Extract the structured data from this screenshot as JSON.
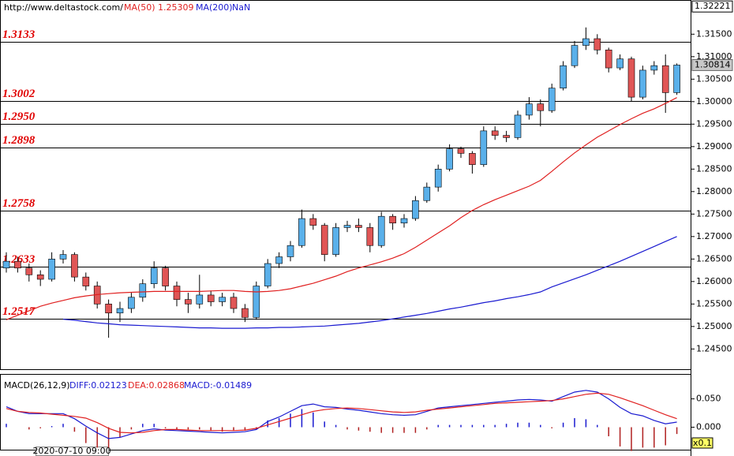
{
  "chart_data": [
    {
      "type": "candlestick",
      "source": "http://www.deltastock.com/",
      "up_color": "#5ab0ea",
      "down_color": "#e05656",
      "ylim": [
        1.2405,
        1.3226
      ],
      "yticks": [
        {
          "value": 1.245,
          "label": "1.24500"
        },
        {
          "value": 1.25,
          "label": "1.25000"
        },
        {
          "value": 1.255,
          "label": "1.25500"
        },
        {
          "value": 1.26,
          "label": "1.26000"
        },
        {
          "value": 1.265,
          "label": "1.26500"
        },
        {
          "value": 1.27,
          "label": "1.27000"
        },
        {
          "value": 1.275,
          "label": "1.27500"
        },
        {
          "value": 1.28,
          "label": "1.28000"
        },
        {
          "value": 1.285,
          "label": "1.28500"
        },
        {
          "value": 1.29,
          "label": "1.29000"
        },
        {
          "value": 1.295,
          "label": "1.29500"
        },
        {
          "value": 1.3,
          "label": "1.30000"
        },
        {
          "value": 1.305,
          "label": "1.30500"
        },
        {
          "value": 1.31,
          "label": "1.31000"
        },
        {
          "value": 1.315,
          "label": "1.31500"
        }
      ],
      "top_price": 1.32221,
      "current_price": 1.30814,
      "levels": [
        1.3133,
        1.3002,
        {
          "value": 1.295,
          "label": "1.2950"
        },
        1.2898,
        1.2758,
        1.2633,
        1.2517
      ],
      "ohlc": [
        [
          1.263,
          1.2665,
          1.262,
          1.2645
        ],
        [
          1.2645,
          1.2655,
          1.262,
          1.263
        ],
        [
          1.263,
          1.264,
          1.26,
          1.2615
        ],
        [
          1.2615,
          1.2625,
          1.259,
          1.2605
        ],
        [
          1.2605,
          1.2665,
          1.26,
          1.265
        ],
        [
          1.265,
          1.267,
          1.264,
          1.266
        ],
        [
          1.266,
          1.2665,
          1.26,
          1.261
        ],
        [
          1.261,
          1.262,
          1.258,
          1.259
        ],
        [
          1.259,
          1.26,
          1.254,
          1.255
        ],
        [
          1.255,
          1.256,
          1.2475,
          1.253
        ],
        [
          1.253,
          1.2555,
          1.251,
          1.254
        ],
        [
          1.254,
          1.2575,
          1.253,
          1.2565
        ],
        [
          1.2565,
          1.2605,
          1.2555,
          1.2595
        ],
        [
          1.2595,
          1.2645,
          1.2585,
          1.263
        ],
        [
          1.263,
          1.2635,
          1.258,
          1.259
        ],
        [
          1.259,
          1.26,
          1.2545,
          1.256
        ],
        [
          1.256,
          1.2575,
          1.253,
          1.255
        ],
        [
          1.255,
          1.2615,
          1.254,
          1.257
        ],
        [
          1.257,
          1.258,
          1.2545,
          1.2555
        ],
        [
          1.2555,
          1.2575,
          1.2545,
          1.2565
        ],
        [
          1.2565,
          1.2575,
          1.253,
          1.254
        ],
        [
          1.254,
          1.255,
          1.251,
          1.252
        ],
        [
          1.252,
          1.26,
          1.2515,
          1.259
        ],
        [
          1.259,
          1.265,
          1.2585,
          1.264
        ],
        [
          1.264,
          1.2665,
          1.263,
          1.2655
        ],
        [
          1.2655,
          1.269,
          1.2645,
          1.268
        ],
        [
          1.268,
          1.276,
          1.2675,
          1.274
        ],
        [
          1.274,
          1.275,
          1.2715,
          1.2725
        ],
        [
          1.2725,
          1.273,
          1.2645,
          1.266
        ],
        [
          1.266,
          1.273,
          1.2655,
          1.272
        ],
        [
          1.272,
          1.2735,
          1.271,
          1.2725
        ],
        [
          1.2725,
          1.274,
          1.271,
          1.272
        ],
        [
          1.272,
          1.273,
          1.2665,
          1.268
        ],
        [
          1.268,
          1.2755,
          1.2675,
          1.2745
        ],
        [
          1.2745,
          1.275,
          1.2715,
          1.273
        ],
        [
          1.273,
          1.275,
          1.272,
          1.274
        ],
        [
          1.274,
          1.279,
          1.2735,
          1.278
        ],
        [
          1.278,
          1.282,
          1.2775,
          1.281
        ],
        [
          1.281,
          1.286,
          1.28,
          1.285
        ],
        [
          1.285,
          1.2905,
          1.2845,
          1.2895
        ],
        [
          1.2895,
          1.29,
          1.2875,
          1.2885
        ],
        [
          1.2885,
          1.289,
          1.284,
          1.286
        ],
        [
          1.286,
          1.2945,
          1.2855,
          1.2935
        ],
        [
          1.2935,
          1.2945,
          1.2915,
          1.2925
        ],
        [
          1.2925,
          1.2935,
          1.291,
          1.292
        ],
        [
          1.292,
          1.298,
          1.2915,
          1.297
        ],
        [
          1.297,
          1.301,
          1.296,
          1.2995
        ],
        [
          1.2995,
          1.3005,
          1.2945,
          1.298
        ],
        [
          1.298,
          1.304,
          1.2975,
          1.303
        ],
        [
          1.303,
          1.309,
          1.3025,
          1.308
        ],
        [
          1.308,
          1.3135,
          1.3075,
          1.3125
        ],
        [
          1.3125,
          1.3165,
          1.3115,
          1.314
        ],
        [
          1.314,
          1.315,
          1.3105,
          1.3115
        ],
        [
          1.3115,
          1.312,
          1.3065,
          1.3075
        ],
        [
          1.3075,
          1.3105,
          1.307,
          1.3095
        ],
        [
          1.3095,
          1.31,
          1.3,
          1.301
        ],
        [
          1.301,
          1.308,
          1.3005,
          1.307
        ],
        [
          1.307,
          1.309,
          1.306,
          1.308
        ],
        [
          1.308,
          1.3105,
          1.2975,
          1.302
        ],
        [
          1.302,
          1.3085,
          1.3015,
          1.30814
        ]
      ],
      "series": [
        {
          "name": "MA(50)",
          "readout": "1.25309",
          "color": "#e02020",
          "values": [
            1.2515,
            1.2525,
            1.2535,
            1.2545,
            1.2552,
            1.2558,
            1.2564,
            1.2568,
            1.2571,
            1.2573,
            1.2575,
            1.2576,
            1.2577,
            1.2578,
            1.2578,
            1.2578,
            1.2578,
            1.2578,
            1.2579,
            1.258,
            1.258,
            1.2578,
            1.2577,
            1.2578,
            1.258,
            1.2584,
            1.259,
            1.2596,
            1.2604,
            1.2612,
            1.2622,
            1.263,
            1.2637,
            1.2644,
            1.2652,
            1.2662,
            1.2676,
            1.2692,
            1.2708,
            1.2724,
            1.2742,
            1.2758,
            1.2771,
            1.2782,
            1.2792,
            1.2802,
            1.2812,
            1.2825,
            1.2845,
            1.2866,
            1.2886,
            1.2904,
            1.2921,
            1.2935,
            1.2949,
            1.2962,
            1.2974,
            1.2984,
            1.2996,
            1.3009
          ]
        },
        {
          "name": "MA(200)",
          "readout": "NaN",
          "color": "#1a1ad0",
          "values": [
            null,
            null,
            null,
            null,
            null,
            1.2516,
            1.2514,
            1.2511,
            1.2508,
            1.2506,
            1.2504,
            1.2503,
            1.2502,
            1.2501,
            1.25,
            1.2499,
            1.2498,
            1.2497,
            1.2497,
            1.2496,
            1.2496,
            1.2496,
            1.2497,
            1.2497,
            1.2498,
            1.2498,
            1.2499,
            1.25,
            1.2501,
            1.2503,
            1.2505,
            1.2507,
            1.251,
            1.2513,
            1.2517,
            1.2521,
            1.2525,
            1.2529,
            1.2534,
            1.2539,
            1.2543,
            1.2548,
            1.2553,
            1.2557,
            1.2562,
            1.2566,
            1.2571,
            1.2577,
            1.2588,
            1.2597,
            1.2606,
            1.2615,
            1.2625,
            1.2635,
            1.2645,
            1.2656,
            1.2667,
            1.2678,
            1.2689,
            1.27
          ]
        }
      ]
    },
    {
      "type": "macd",
      "title": "MACD(26,12,9)",
      "ylim": [
        -0.0397,
        0.0926
      ],
      "yticks": [
        {
          "value": 0.05,
          "label": "0.050"
        },
        {
          "value": 0,
          "label": "0.000"
        }
      ],
      "scale_label": "x0.1",
      "date_label": "2020-07-10 09:00",
      "series": [
        {
          "name": "DIFF",
          "readout": "DIFF:0.02123",
          "color": "#1a1ad0",
          "values": [
            0.036,
            0.028,
            0.024,
            0.024,
            0.024,
            0.024,
            0.015,
            0.002,
            -0.01,
            -0.02,
            -0.018,
            -0.012,
            -0.006,
            -0.003,
            -0.005,
            -0.006,
            -0.007,
            -0.008,
            -0.009,
            -0.01,
            -0.009,
            -0.008,
            -0.004,
            0.01,
            0.018,
            0.028,
            0.038,
            0.041,
            0.036,
            0.035,
            0.032,
            0.03,
            0.027,
            0.024,
            0.022,
            0.021,
            0.022,
            0.028,
            0.034,
            0.036,
            0.038,
            0.04,
            0.042,
            0.044,
            0.046,
            0.048,
            0.049,
            0.048,
            0.046,
            0.054,
            0.062,
            0.065,
            0.062,
            0.05,
            0.035,
            0.024,
            0.02,
            0.012,
            0.006,
            0.009
          ]
        },
        {
          "name": "DEA",
          "readout": "DEA:0.02868",
          "color": "#e02020",
          "values": [
            0.033,
            0.028,
            0.026,
            0.025,
            0.023,
            0.021,
            0.019,
            0.016,
            0.008,
            -0.002,
            -0.009,
            -0.01,
            -0.009,
            -0.006,
            -0.004,
            -0.004,
            -0.005,
            -0.006,
            -0.006,
            -0.006,
            -0.006,
            -0.005,
            -0.002,
            0.004,
            0.01,
            0.016,
            0.022,
            0.028,
            0.031,
            0.033,
            0.034,
            0.033,
            0.031,
            0.029,
            0.027,
            0.026,
            0.027,
            0.03,
            0.032,
            0.034,
            0.036,
            0.038,
            0.04,
            0.042,
            0.043,
            0.044,
            0.045,
            0.046,
            0.047,
            0.05,
            0.054,
            0.058,
            0.06,
            0.058,
            0.052,
            0.045,
            0.038,
            0.03,
            0.022,
            0.015
          ]
        },
        {
          "name": "MACD",
          "readout": "MACD:-0.01489",
          "color": "#1a1ad0",
          "down_color": "#b02020",
          "values": [
            0.006,
            0,
            -0.004,
            -0.002,
            0.002,
            0.006,
            -0.008,
            -0.028,
            -0.036,
            -0.036,
            -0.018,
            -0.004,
            0.006,
            0.006,
            -0.002,
            -0.004,
            -0.004,
            -0.004,
            -0.006,
            -0.008,
            -0.006,
            -0.006,
            -0.004,
            0.012,
            0.016,
            0.024,
            0.032,
            0.026,
            0.01,
            0.004,
            -0.004,
            -0.006,
            -0.008,
            -0.01,
            -0.01,
            -0.01,
            -0.01,
            -0.004,
            0.004,
            0.004,
            0.004,
            0.004,
            0.004,
            0.004,
            0.006,
            0.008,
            0.008,
            0.004,
            -0.002,
            0.008,
            0.016,
            0.014,
            0.004,
            -0.016,
            -0.034,
            -0.042,
            -0.036,
            -0.036,
            -0.032,
            -0.012
          ]
        }
      ]
    }
  ]
}
